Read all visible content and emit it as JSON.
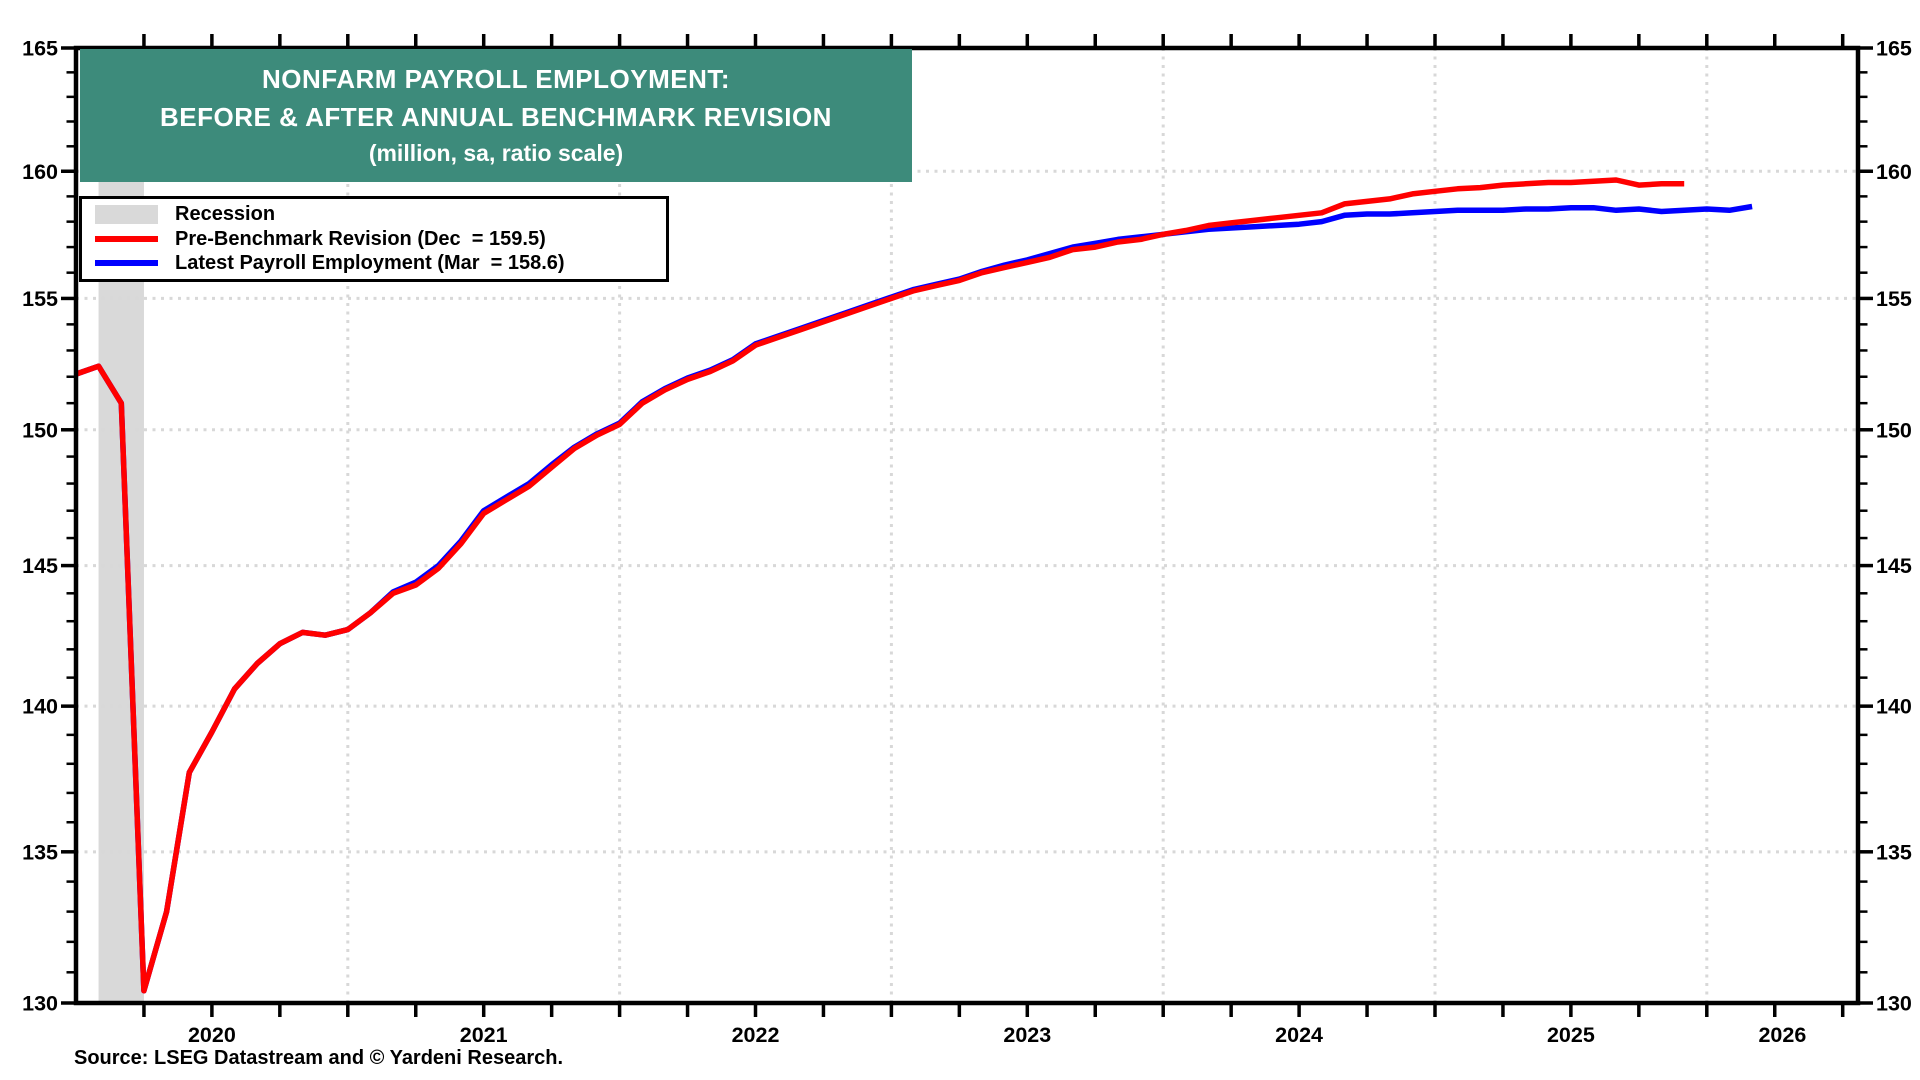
{
  "title": {
    "line1": "NONFARM PAYROLL EMPLOYMENT:",
    "line2": "BEFORE & AFTER ANNUAL BENCHMARK REVISION",
    "line3": "(million, sa, ratio scale)"
  },
  "legend": {
    "items": [
      {
        "label": "Recession",
        "swatch": "band"
      },
      {
        "label": "Pre-Benchmark Revision (Dec  = 159.5)",
        "swatch": "line-red"
      },
      {
        "label": "Latest Payroll Employment (Mar  = 158.6)",
        "swatch": "line-blue"
      }
    ]
  },
  "source_note": "Source: LSEG Datastream and © Yardeni Research.",
  "colors": {
    "pre_benchmark": "#FF0000",
    "latest": "#0000FF",
    "recession_band": "#D9D9D9",
    "gridline": "#D8D8D8",
    "title_bg": "#3D8B7B",
    "title_text": "#FFFFFF",
    "frame": "#000000"
  },
  "chart_data": {
    "type": "line",
    "title": "NONFARM PAYROLL EMPLOYMENT: BEFORE & AFTER ANNUAL BENCHMARK REVISION (million, sa, ratio scale)",
    "y_axis": {
      "scale": "log",
      "min": 130,
      "max": 165,
      "major_ticks": [
        130,
        135,
        140,
        145,
        150,
        155,
        160,
        165
      ],
      "minor_step": 1,
      "labels_on_both_sides": true
    },
    "x_axis": {
      "years": [
        2020,
        2021,
        2022,
        2023,
        2024,
        2025,
        2026
      ],
      "gridline_years": [
        2021,
        2022,
        2023,
        2024,
        2025,
        2026
      ],
      "minor_tick_interval_months": 3,
      "range_start": "2020-01",
      "range_end": "2026-07"
    },
    "recession_bands": [
      {
        "start": 2020.083,
        "end": 2020.25
      }
    ],
    "series": [
      {
        "id": "pre-benchmark",
        "name": "Pre-Benchmark Revision",
        "color": "#FF0000",
        "start_year": 2020.0,
        "end_label": "Dec = 159.5",
        "values": [
          152.1,
          152.4,
          151.0,
          130.4,
          133.0,
          137.7,
          139.1,
          140.6,
          141.5,
          142.2,
          142.6,
          142.5,
          142.7,
          143.3,
          144.0,
          144.3,
          144.9,
          145.8,
          146.9,
          147.4,
          147.9,
          148.6,
          149.3,
          149.8,
          150.2,
          151.0,
          151.5,
          151.9,
          152.2,
          152.6,
          153.2,
          153.5,
          153.8,
          154.1,
          154.4,
          154.7,
          155.0,
          155.3,
          155.5,
          155.7,
          156.0,
          156.2,
          156.4,
          156.6,
          156.9,
          157.0,
          157.2,
          157.3,
          157.5,
          157.65,
          157.85,
          157.95,
          158.05,
          158.15,
          158.25,
          158.35,
          158.7,
          158.8,
          158.9,
          159.1,
          159.2,
          159.3,
          159.35,
          159.45,
          159.5,
          159.55,
          159.55,
          159.6,
          159.65,
          159.45,
          159.5,
          159.5
        ]
      },
      {
        "id": "latest",
        "name": "Latest Payroll Employment",
        "color": "#0000FF",
        "start_year": 2020.0,
        "end_label": "Mar = 158.6",
        "values": [
          152.1,
          152.4,
          151.0,
          130.4,
          133.0,
          137.7,
          139.1,
          140.6,
          141.5,
          142.2,
          142.6,
          142.5,
          142.7,
          143.3,
          144.05,
          144.4,
          145.0,
          145.9,
          147.0,
          147.5,
          148.0,
          148.7,
          149.35,
          149.85,
          150.25,
          151.05,
          151.55,
          151.95,
          152.25,
          152.65,
          153.25,
          153.55,
          153.85,
          154.15,
          154.45,
          154.75,
          155.05,
          155.35,
          155.55,
          155.75,
          156.05,
          156.3,
          156.5,
          156.75,
          157.0,
          157.15,
          157.3,
          157.4,
          157.5,
          157.6,
          157.7,
          157.75,
          157.8,
          157.85,
          157.9,
          158.0,
          158.25,
          158.3,
          158.3,
          158.35,
          158.4,
          158.45,
          158.45,
          158.45,
          158.5,
          158.5,
          158.55,
          158.55,
          158.45,
          158.5,
          158.4,
          158.45,
          158.5,
          158.45,
          158.6
        ]
      }
    ]
  }
}
